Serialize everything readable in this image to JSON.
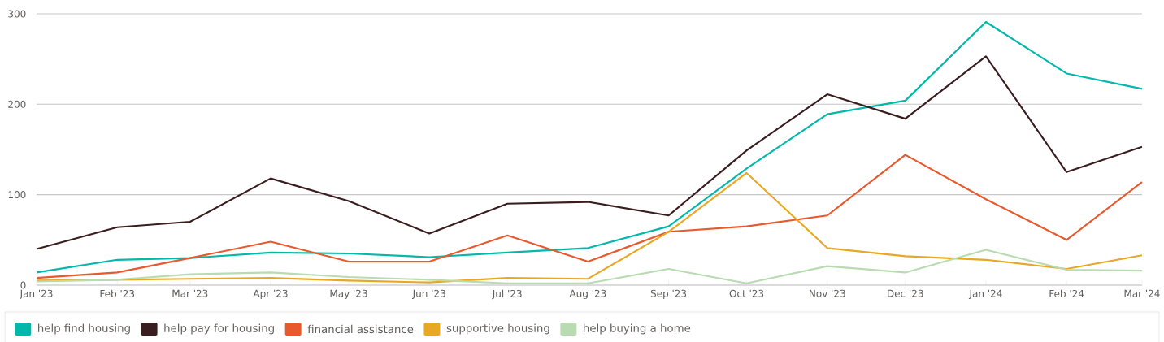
{
  "chart_data": {
    "type": "line",
    "x": [
      "2023-01",
      "2023-02",
      "2023-03",
      "2023-04",
      "2023-05",
      "2023-06",
      "2023-07",
      "2023-08",
      "2023-09",
      "2023-10",
      "2023-11",
      "2023-12",
      "2024-01",
      "2024-02",
      "2024-03"
    ],
    "xlim": [
      "2023-01",
      "2024-03"
    ],
    "xticks": [
      {
        "value": "2023-01",
        "label": "Jan '23"
      },
      {
        "value": "2023-02",
        "label": "Feb '23"
      },
      {
        "value": "2023-03",
        "label": "Mar '23"
      },
      {
        "value": "2023-04",
        "label": "Apr '23"
      },
      {
        "value": "2023-05",
        "label": "May '23"
      },
      {
        "value": "2023-06",
        "label": "Jun '23"
      },
      {
        "value": "2023-07",
        "label": "Jul '23"
      },
      {
        "value": "2023-08",
        "label": "Aug '23"
      },
      {
        "value": "2023-09",
        "label": "Sep '23"
      },
      {
        "value": "2023-10",
        "label": "Oct '23"
      },
      {
        "value": "2023-11",
        "label": "Nov '23"
      },
      {
        "value": "2023-12",
        "label": "Dec '23"
      },
      {
        "value": "2024-01",
        "label": "Jan '24"
      },
      {
        "value": "2024-02",
        "label": "Feb '24"
      },
      {
        "value": "2024-03",
        "label": "Mar '24"
      }
    ],
    "ylim": [
      0,
      300
    ],
    "yticks": [
      0,
      100,
      200,
      300
    ],
    "grid": "y",
    "legend": "bottom",
    "marker": "none",
    "line_style": "solid",
    "series": [
      {
        "name": "help find housing",
        "color": "#01b8aa",
        "values": [
          14,
          28,
          30,
          36,
          35,
          31,
          36,
          41,
          65,
          129,
          189,
          204,
          291,
          234,
          217
        ]
      },
      {
        "name": "help pay for housing",
        "color": "#3a1d1f",
        "values": [
          40,
          64,
          70,
          118,
          93,
          57,
          90,
          92,
          77,
          149,
          211,
          184,
          253,
          125,
          153
        ]
      },
      {
        "name": "financial assistance",
        "color": "#e8592e",
        "values": [
          8,
          14,
          30,
          48,
          26,
          26,
          55,
          26,
          59,
          65,
          77,
          144,
          95,
          50,
          114
        ]
      },
      {
        "name": "supportive housing",
        "color": "#e8a824",
        "values": [
          5,
          6,
          7,
          8,
          5,
          3,
          8,
          7,
          59,
          124,
          41,
          32,
          28,
          18,
          33
        ]
      },
      {
        "name": "help buying a home",
        "color": "#b9dbb1",
        "values": [
          4,
          6,
          12,
          14,
          9,
          6,
          2,
          2,
          18,
          2,
          21,
          14,
          39,
          17,
          16
        ]
      }
    ]
  }
}
